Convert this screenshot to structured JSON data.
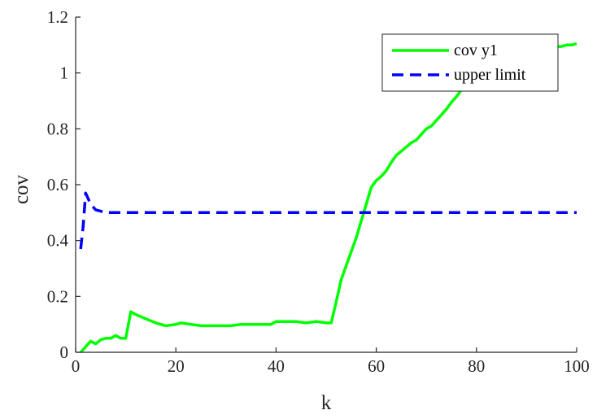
{
  "chart_data": {
    "type": "line",
    "title": "",
    "xlabel": "k",
    "ylabel": "cov",
    "xlim": [
      0,
      100
    ],
    "ylim": [
      0,
      1.2
    ],
    "xticks": [
      "0",
      "20",
      "40",
      "60",
      "80",
      "100"
    ],
    "yticks": [
      "0",
      "0.2",
      "0.4",
      "0.6",
      "0.8",
      "1",
      "1.2"
    ],
    "grid": false,
    "legend_position": "top-right",
    "series": [
      {
        "name": "cov y1",
        "color": "#00ff00",
        "style": "solid",
        "x": [
          1,
          2,
          3,
          4,
          5,
          6,
          7,
          8,
          9,
          10,
          11,
          12,
          14,
          16,
          18,
          20,
          21,
          23,
          25,
          27,
          29,
          31,
          33,
          35,
          37,
          39,
          40,
          42,
          44,
          46,
          48,
          50,
          51,
          52,
          53,
          54,
          55,
          56,
          57,
          58,
          59,
          60,
          61,
          62,
          63,
          64,
          65,
          66,
          67,
          68,
          69,
          70,
          71,
          72,
          73,
          74,
          75,
          76,
          77,
          78,
          79,
          80,
          81,
          82,
          83,
          84,
          85,
          86,
          87,
          88,
          89,
          90,
          91,
          92,
          93,
          94,
          95,
          96,
          97,
          98,
          99,
          100
        ],
        "y": [
          0.0,
          0.02,
          0.04,
          0.03,
          0.045,
          0.05,
          0.05,
          0.06,
          0.05,
          0.05,
          0.145,
          0.135,
          0.12,
          0.105,
          0.095,
          0.1,
          0.105,
          0.1,
          0.095,
          0.095,
          0.095,
          0.095,
          0.1,
          0.1,
          0.1,
          0.1,
          0.11,
          0.11,
          0.11,
          0.105,
          0.11,
          0.105,
          0.105,
          0.18,
          0.26,
          0.31,
          0.36,
          0.41,
          0.47,
          0.53,
          0.59,
          0.615,
          0.63,
          0.65,
          0.68,
          0.705,
          0.72,
          0.735,
          0.75,
          0.76,
          0.78,
          0.8,
          0.81,
          0.83,
          0.85,
          0.87,
          0.895,
          0.915,
          0.94,
          0.96,
          0.98,
          0.99,
          1.0,
          1.01,
          1.02,
          1.03,
          1.035,
          1.04,
          1.05,
          1.055,
          1.06,
          1.065,
          1.07,
          1.075,
          1.08,
          1.085,
          1.09,
          1.095,
          1.095,
          1.1,
          1.1,
          1.105
        ]
      },
      {
        "name": "upper limit",
        "color": "#0000ff",
        "style": "dashed",
        "x": [
          1,
          1.5,
          2,
          2.5,
          3,
          3.5,
          4,
          5,
          6,
          8,
          10,
          20,
          40,
          60,
          80,
          100
        ],
        "y": [
          0.37,
          0.45,
          0.57,
          0.55,
          0.53,
          0.52,
          0.51,
          0.505,
          0.5,
          0.5,
          0.5,
          0.5,
          0.5,
          0.5,
          0.5,
          0.5
        ]
      }
    ]
  }
}
